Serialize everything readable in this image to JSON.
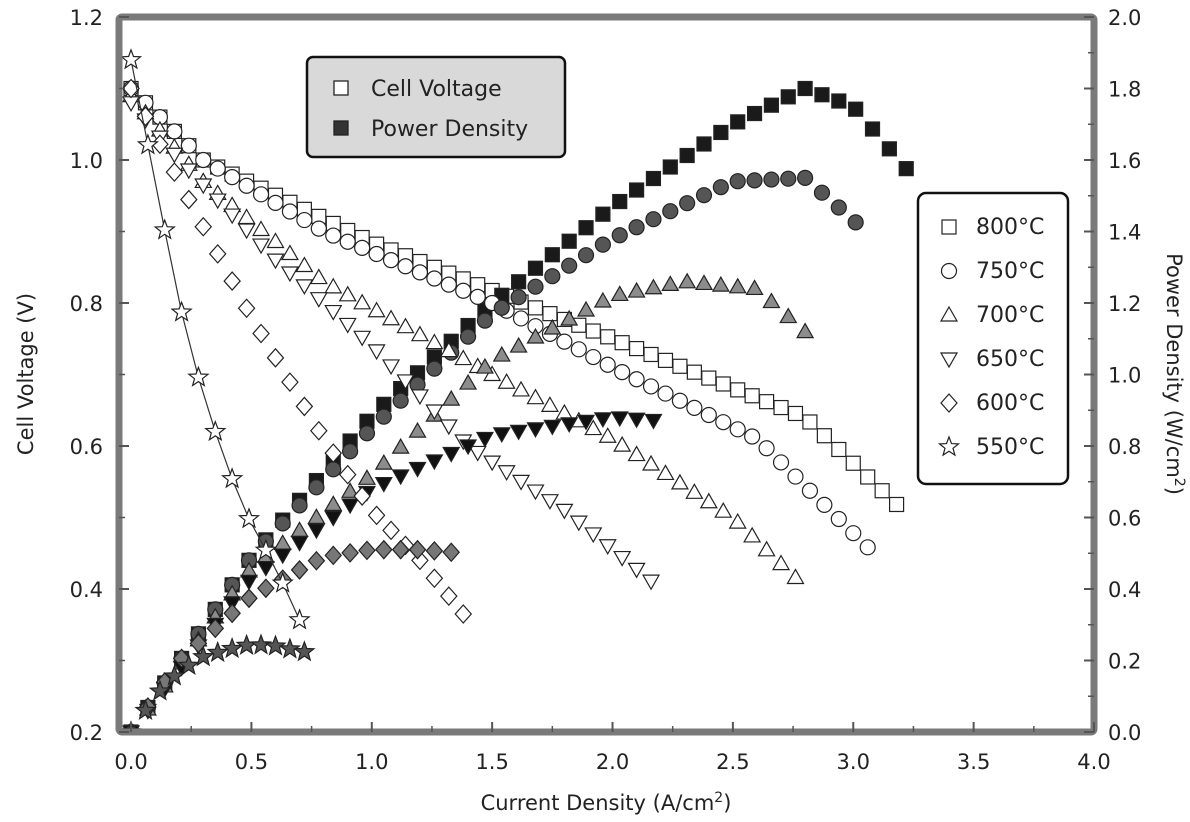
{
  "chart_data": {
    "type": "scatter",
    "x_axis": {
      "label_main": "Current Density (A/cm",
      "label_sup": "2",
      "label_tail": ")",
      "range": [
        -0.05,
        4.0
      ],
      "ticks": [
        "0.0",
        "0.5",
        "1.0",
        "1.5",
        "2.0",
        "2.5",
        "3.0",
        "3.5",
        "4.0"
      ]
    },
    "y_axis_left": {
      "label": "Cell Voltage (V)",
      "range": [
        0.2,
        1.2
      ],
      "ticks": [
        "0.2",
        "0.4",
        "0.6",
        "0.8",
        "1.0",
        "1.2"
      ]
    },
    "y_axis_right": {
      "label_main": "Power Density (W/cm",
      "label_sup": "2",
      "label_tail": ")",
      "range": [
        0.0,
        2.0
      ],
      "ticks": [
        "0.0",
        "0.2",
        "0.4",
        "0.6",
        "0.8",
        "1.0",
        "1.2",
        "1.4",
        "1.6",
        "1.8",
        "2.0"
      ]
    },
    "grid": false,
    "legend_type": {
      "placement": "top-left",
      "entries": [
        {
          "label": "Cell Voltage",
          "style": "open"
        },
        {
          "label": "Power Density",
          "style": "filled"
        }
      ]
    },
    "legend_temp": {
      "placement": "right",
      "entries": [
        {
          "label": "800°C",
          "marker": "square"
        },
        {
          "label": "750°C",
          "marker": "circle"
        },
        {
          "label": "700°C",
          "marker": "triangle-up"
        },
        {
          "label": "650°C",
          "marker": "triangle-down"
        },
        {
          "label": "600°C",
          "marker": "diamond"
        },
        {
          "label": "550°C",
          "marker": "star"
        }
      ]
    },
    "series": [
      {
        "name": "800°C",
        "marker": "square",
        "fill_color": "#1a1a1a",
        "voltage": {
          "x_max": 3.19,
          "y_start": 1.1,
          "knots": [
            [
              0,
              1.1
            ],
            [
              0.3,
              1.0
            ],
            [
              1.0,
              0.885
            ],
            [
              2.0,
              0.75
            ],
            [
              2.8,
              0.64
            ],
            [
              3.19,
              0.515
            ]
          ]
        },
        "power": {
          "x_max": 3.24,
          "knots": [
            [
              0,
              0
            ],
            [
              0.5,
              0.49
            ],
            [
              1.0,
              0.885
            ],
            [
              1.5,
              1.2
            ],
            [
              2.0,
              1.47
            ],
            [
              2.5,
              1.7
            ],
            [
              2.8,
              1.8
            ],
            [
              3.0,
              1.75
            ],
            [
              3.24,
              1.56
            ]
          ]
        }
      },
      {
        "name": "750°C",
        "marker": "circle",
        "fill_color": "#555555",
        "voltage": {
          "x_max": 3.07,
          "y_start": 1.1,
          "knots": [
            [
              0,
              1.1
            ],
            [
              0.3,
              1.0
            ],
            [
              0.8,
              0.9
            ],
            [
              1.5,
              0.8
            ],
            [
              2.0,
              0.71
            ],
            [
              2.6,
              0.61
            ],
            [
              3.07,
              0.455
            ]
          ]
        },
        "power": {
          "x_max": 3.07,
          "knots": [
            [
              0,
              0
            ],
            [
              0.5,
              0.49
            ],
            [
              1.0,
              0.85
            ],
            [
              1.5,
              1.17
            ],
            [
              2.0,
              1.38
            ],
            [
              2.5,
              1.54
            ],
            [
              2.8,
              1.55
            ],
            [
              3.07,
              1.39
            ]
          ]
        }
      },
      {
        "name": "700°C",
        "marker": "triangle-up",
        "fill_color": "#8c8c8c",
        "voltage": {
          "x_max": 2.81,
          "y_start": 1.09,
          "knots": [
            [
              0,
              1.09
            ],
            [
              0.3,
              0.97
            ],
            [
              0.8,
              0.83
            ],
            [
              1.5,
              0.7
            ],
            [
              2.0,
              0.61
            ],
            [
              2.5,
              0.5
            ],
            [
              2.81,
              0.4
            ]
          ]
        },
        "power": {
          "x_max": 2.8,
          "knots": [
            [
              0,
              0
            ],
            [
              0.5,
              0.46
            ],
            [
              1.0,
              0.72
            ],
            [
              1.5,
              1.04
            ],
            [
              2.0,
              1.22
            ],
            [
              2.3,
              1.26
            ],
            [
              2.6,
              1.24
            ],
            [
              2.8,
              1.12
            ]
          ]
        }
      },
      {
        "name": "650°C",
        "marker": "triangle-down",
        "fill_color": "#111111",
        "voltage": {
          "x_max": 2.2,
          "y_start": 1.08,
          "knots": [
            [
              0,
              1.08
            ],
            [
              0.2,
              1.0
            ],
            [
              0.6,
              0.86
            ],
            [
              1.0,
              0.74
            ],
            [
              1.4,
              0.6
            ],
            [
              1.8,
              0.51
            ],
            [
              2.2,
              0.4
            ]
          ]
        },
        "power": {
          "x_max": 2.2,
          "knots": [
            [
              0,
              0
            ],
            [
              0.5,
              0.43
            ],
            [
              1.0,
              0.68
            ],
            [
              1.5,
              0.83
            ],
            [
              2.0,
              0.88
            ],
            [
              2.2,
              0.87
            ]
          ]
        }
      },
      {
        "name": "600°C",
        "marker": "diamond",
        "fill_color": "#777777",
        "voltage": {
          "x_max": 1.38,
          "y_start": 1.1,
          "knots": [
            [
              0,
              1.1
            ],
            [
              0.2,
              0.97
            ],
            [
              0.5,
              0.78
            ],
            [
              0.8,
              0.61
            ],
            [
              1.0,
              0.51
            ],
            [
              1.2,
              0.44
            ],
            [
              1.38,
              0.365
            ]
          ]
        },
        "power": {
          "x_max": 1.38,
          "knots": [
            [
              0,
              0
            ],
            [
              0.2,
              0.2
            ],
            [
              0.5,
              0.38
            ],
            [
              0.8,
              0.49
            ],
            [
              1.0,
              0.51
            ],
            [
              1.2,
              0.51
            ],
            [
              1.38,
              0.5
            ]
          ]
        }
      },
      {
        "name": "550°C",
        "marker": "star",
        "fill_color": "#555555",
        "voltage": {
          "x_max": 0.75,
          "y_start": 1.14,
          "knots": [
            [
              0,
              1.14
            ],
            [
              0.1,
              0.97
            ],
            [
              0.2,
              0.8
            ],
            [
              0.3,
              0.67
            ],
            [
              0.4,
              0.57
            ],
            [
              0.5,
              0.49
            ],
            [
              0.6,
              0.43
            ],
            [
              0.75,
              0.32
            ]
          ]
        },
        "power": {
          "x_max": 0.75,
          "knots": [
            [
              0,
              0
            ],
            [
              0.1,
              0.1
            ],
            [
              0.2,
              0.17
            ],
            [
              0.3,
              0.21
            ],
            [
              0.4,
              0.23
            ],
            [
              0.5,
              0.245
            ],
            [
              0.6,
              0.24
            ],
            [
              0.75,
              0.22
            ]
          ]
        }
      }
    ]
  }
}
